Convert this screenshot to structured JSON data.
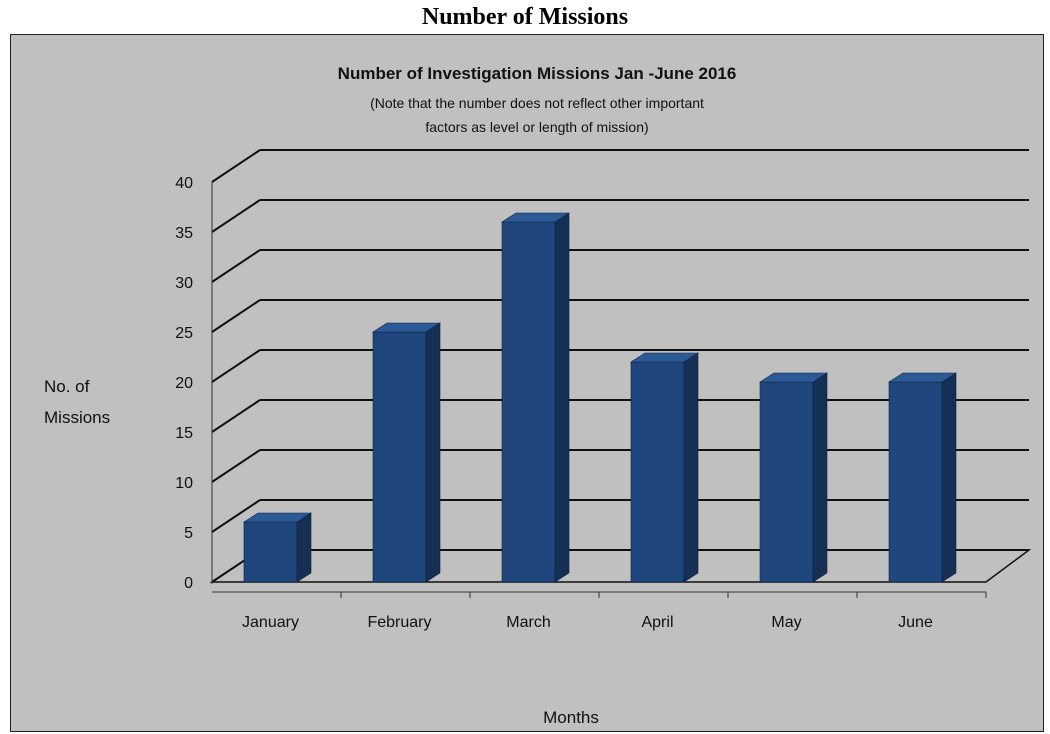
{
  "caption": "Number of Missions",
  "chart_data": {
    "type": "bar",
    "title": "Number of Investigation  Missions  Jan -June 2016",
    "subtitle_lines": [
      "(Note that the number does not reflect other important",
      "factors as level or length of mission)"
    ],
    "categories": [
      "January",
      "February",
      "March",
      "April",
      "May",
      "June"
    ],
    "values": [
      6,
      25,
      36,
      22,
      20,
      20
    ],
    "yticks": [
      "0",
      "5",
      "10",
      "15",
      "20",
      "25",
      "30",
      "35",
      "40"
    ],
    "ylim": [
      0,
      40
    ],
    "ylabel_lines": [
      "No. of",
      "Missions"
    ],
    "xlabel": "Months",
    "grid": true,
    "style": "3d-column",
    "colors": {
      "bar_front": "#1f477e",
      "bar_side": "#152f55",
      "bar_top": "#2c5a96",
      "background": "#c0c0c0"
    }
  }
}
